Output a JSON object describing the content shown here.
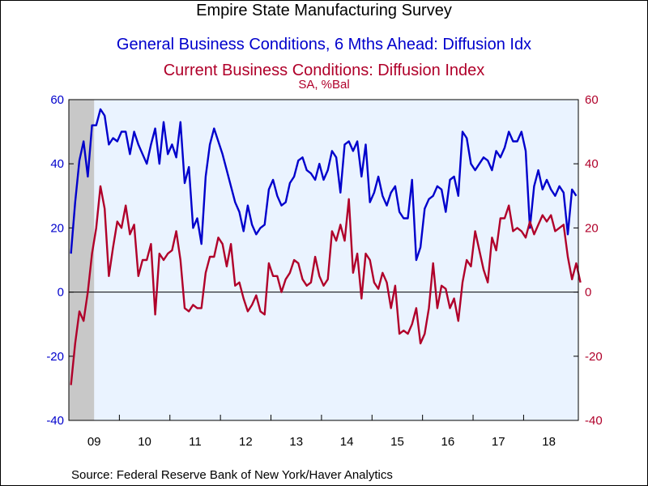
{
  "chart_data": {
    "type": "line",
    "title": "Empire State Manufacturing Survey",
    "subtitle": "SA, %Bal",
    "x_tick_labels": [
      "09",
      "10",
      "11",
      "12",
      "13",
      "14",
      "15",
      "16",
      "17",
      "18"
    ],
    "x_range": [
      "2009-01",
      "2018-12"
    ],
    "shaded_period": {
      "start": "2009-01",
      "end": "2009-06"
    },
    "y_left": {
      "range": [
        -40,
        60
      ],
      "ticks": [
        "-40",
        "-20",
        "0",
        "20",
        "40",
        "60"
      ],
      "color": "#0000cc"
    },
    "y_right": {
      "range": [
        -40,
        60
      ],
      "ticks": [
        "-40",
        "-20",
        "0",
        "20",
        "40",
        "60"
      ],
      "color": "#b0002a"
    },
    "zero_line": true,
    "background": "#eaf3ff",
    "series": [
      {
        "name": "General Business Conditions, 6 Mths Ahead: Diffusion Idx",
        "color": "#0000cc",
        "axis": "left",
        "values": [
          12,
          28,
          41,
          47,
          36,
          52,
          52,
          57,
          55,
          46,
          48,
          47,
          50,
          50,
          43,
          50,
          46,
          43,
          40,
          46,
          51,
          40,
          53,
          43,
          46,
          42,
          53,
          34,
          39,
          20,
          23,
          15,
          36,
          46,
          51,
          47,
          43,
          38,
          33,
          28,
          25,
          19,
          27,
          21,
          18,
          20,
          21,
          32,
          35,
          30,
          27,
          28,
          34,
          36,
          41,
          42,
          38,
          37,
          35,
          40,
          35,
          38,
          44,
          42,
          31,
          46,
          47,
          44,
          47,
          36,
          46,
          28,
          31,
          36,
          30,
          27,
          31,
          33,
          25,
          23,
          23,
          35,
          10,
          14,
          26,
          29,
          30,
          33,
          32,
          25,
          35,
          36,
          30,
          50,
          48,
          40,
          38,
          40,
          42,
          41,
          38,
          44,
          42,
          45,
          50,
          47,
          47,
          50,
          44,
          20,
          33,
          38,
          32,
          35,
          32,
          30,
          33,
          31,
          18,
          32,
          30
        ]
      },
      {
        "name": "Current Business Conditions: Diffusion Index",
        "color": "#b0002a",
        "axis": "right",
        "values": [
          -29,
          -16,
          -6,
          -9,
          0,
          12,
          20,
          33,
          26,
          5,
          14,
          22,
          20,
          27,
          18,
          21,
          5,
          10,
          10,
          15,
          -7,
          12,
          10,
          12,
          13,
          19,
          10,
          -5,
          -6,
          -4,
          -5,
          -5,
          6,
          11,
          11,
          17,
          15,
          8,
          15,
          2,
          3,
          -2,
          -6,
          -4,
          -1,
          -6,
          -7,
          9,
          5,
          5,
          0,
          4,
          6,
          10,
          9,
          4,
          2,
          3,
          11,
          5,
          2,
          4,
          19,
          16,
          21,
          16,
          29,
          6,
          12,
          -2,
          12,
          10,
          3,
          1,
          6,
          3,
          -5,
          2,
          -13,
          -12,
          -13,
          -10,
          -5,
          -16,
          -13,
          -5,
          9,
          -5,
          2,
          1,
          -5,
          -2,
          -9,
          3,
          10,
          8,
          19,
          13,
          7,
          3,
          17,
          13,
          23,
          23,
          27,
          19,
          20,
          19,
          17,
          22,
          18,
          21,
          24,
          22,
          24,
          19,
          20,
          21,
          11,
          4,
          9,
          3
        ]
      }
    ]
  },
  "source_text": "Source:  Federal Reserve Bank of New York/Haver Analytics"
}
